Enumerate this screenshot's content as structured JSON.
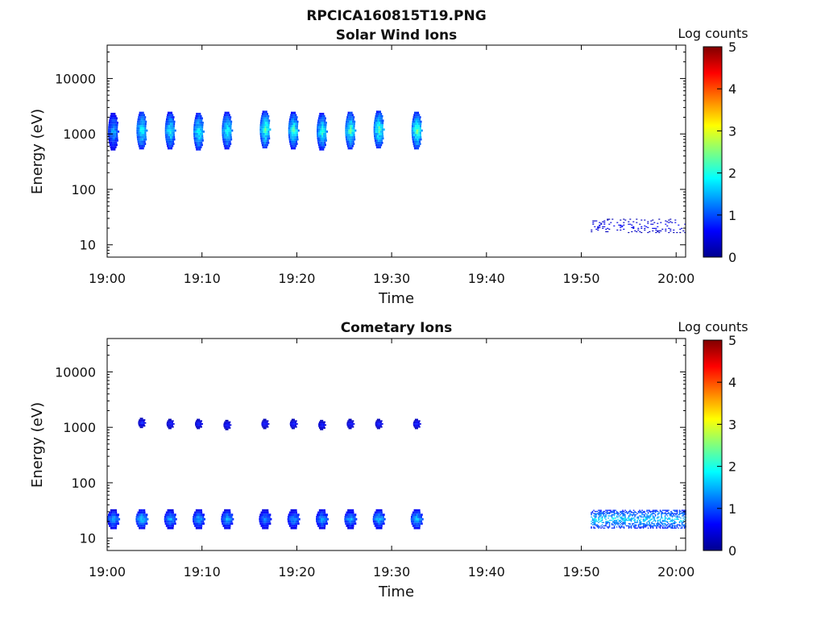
{
  "figure_title": "RPCICA160815T19.PNG",
  "chart_data": [
    {
      "type": "heatmap",
      "title": "Solar Wind Ions",
      "xlabel": "Time",
      "ylabel": "Energy (eV)",
      "yscale": "log",
      "ylim": [
        6,
        40000
      ],
      "xlim": [
        "19:00",
        "20:01"
      ],
      "xticks": [
        "19:00",
        "19:10",
        "19:20",
        "19:30",
        "19:40",
        "19:50",
        "20:00"
      ],
      "yticks": [
        10,
        100,
        1000,
        10000
      ],
      "ytick_labels": [
        "10",
        "100",
        "1000",
        "10000"
      ],
      "grid": false,
      "colorbar": {
        "label": "Log counts",
        "ticks": [
          "0",
          "1",
          "2",
          "3",
          "4",
          "5"
        ],
        "range": [
          0,
          5
        ],
        "colormap": "jet"
      },
      "pulses": [
        {
          "t": "19:00",
          "center_eV": 1100,
          "peak_log": 1.6
        },
        {
          "t": "19:03",
          "center_eV": 1150,
          "peak_log": 2.2
        },
        {
          "t": "19:06",
          "center_eV": 1150,
          "peak_log": 2.1
        },
        {
          "t": "19:09",
          "center_eV": 1100,
          "peak_log": 2.2
        },
        {
          "t": "19:12",
          "center_eV": 1150,
          "peak_log": 2.2
        },
        {
          "t": "19:16",
          "center_eV": 1200,
          "peak_log": 2.4
        },
        {
          "t": "19:19",
          "center_eV": 1150,
          "peak_log": 2.3
        },
        {
          "t": "19:22",
          "center_eV": 1100,
          "peak_log": 2.2
        },
        {
          "t": "19:25",
          "center_eV": 1150,
          "peak_log": 2.4
        },
        {
          "t": "19:28",
          "center_eV": 1200,
          "peak_log": 2.4
        },
        {
          "t": "19:32",
          "center_eV": 1150,
          "peak_log": 2.5
        }
      ],
      "low_energy_band": {
        "from": "19:51",
        "to": "20:01",
        "center_eV": 22,
        "peak_log": 0.6
      }
    },
    {
      "type": "heatmap",
      "title": "Cometary Ions",
      "xlabel": "Time",
      "ylabel": "Energy (eV)",
      "yscale": "log",
      "ylim": [
        6,
        40000
      ],
      "xlim": [
        "19:00",
        "20:01"
      ],
      "xticks": [
        "19:00",
        "19:10",
        "19:20",
        "19:30",
        "19:40",
        "19:50",
        "20:00"
      ],
      "yticks": [
        10,
        100,
        1000,
        10000
      ],
      "ytick_labels": [
        "10",
        "100",
        "1000",
        "10000"
      ],
      "grid": false,
      "colorbar": {
        "label": "Log counts",
        "ticks": [
          "0",
          "1",
          "2",
          "3",
          "4",
          "5"
        ],
        "range": [
          0,
          5
        ],
        "colormap": "jet"
      },
      "pulses_1keV": [
        {
          "t": "19:03",
          "center_eV": 1200,
          "peak_log": 0.8
        },
        {
          "t": "19:06",
          "center_eV": 1150,
          "peak_log": 0.8
        },
        {
          "t": "19:09",
          "center_eV": 1150,
          "peak_log": 0.8
        },
        {
          "t": "19:12",
          "center_eV": 1100,
          "peak_log": 0.8
        },
        {
          "t": "19:16",
          "center_eV": 1150,
          "peak_log": 0.8
        },
        {
          "t": "19:19",
          "center_eV": 1150,
          "peak_log": 0.8
        },
        {
          "t": "19:22",
          "center_eV": 1100,
          "peak_log": 0.8
        },
        {
          "t": "19:25",
          "center_eV": 1150,
          "peak_log": 0.8
        },
        {
          "t": "19:28",
          "center_eV": 1150,
          "peak_log": 0.8
        },
        {
          "t": "19:32",
          "center_eV": 1150,
          "peak_log": 0.9
        }
      ],
      "pulses_low": [
        {
          "t": "19:00",
          "center_eV": 22,
          "peak_log": 1.6
        },
        {
          "t": "19:03",
          "center_eV": 22,
          "peak_log": 1.8
        },
        {
          "t": "19:06",
          "center_eV": 22,
          "peak_log": 1.6
        },
        {
          "t": "19:09",
          "center_eV": 22,
          "peak_log": 1.6
        },
        {
          "t": "19:12",
          "center_eV": 22,
          "peak_log": 1.6
        },
        {
          "t": "19:16",
          "center_eV": 22,
          "peak_log": 1.4
        },
        {
          "t": "19:19",
          "center_eV": 22,
          "peak_log": 1.5
        },
        {
          "t": "19:22",
          "center_eV": 22,
          "peak_log": 1.6
        },
        {
          "t": "19:25",
          "center_eV": 22,
          "peak_log": 1.6
        },
        {
          "t": "19:28",
          "center_eV": 22,
          "peak_log": 1.7
        },
        {
          "t": "19:32",
          "center_eV": 22,
          "peak_log": 1.8
        }
      ],
      "low_energy_band": {
        "from": "19:51",
        "to": "20:01",
        "center_eV": 22,
        "peak_log": 1.7
      }
    }
  ]
}
